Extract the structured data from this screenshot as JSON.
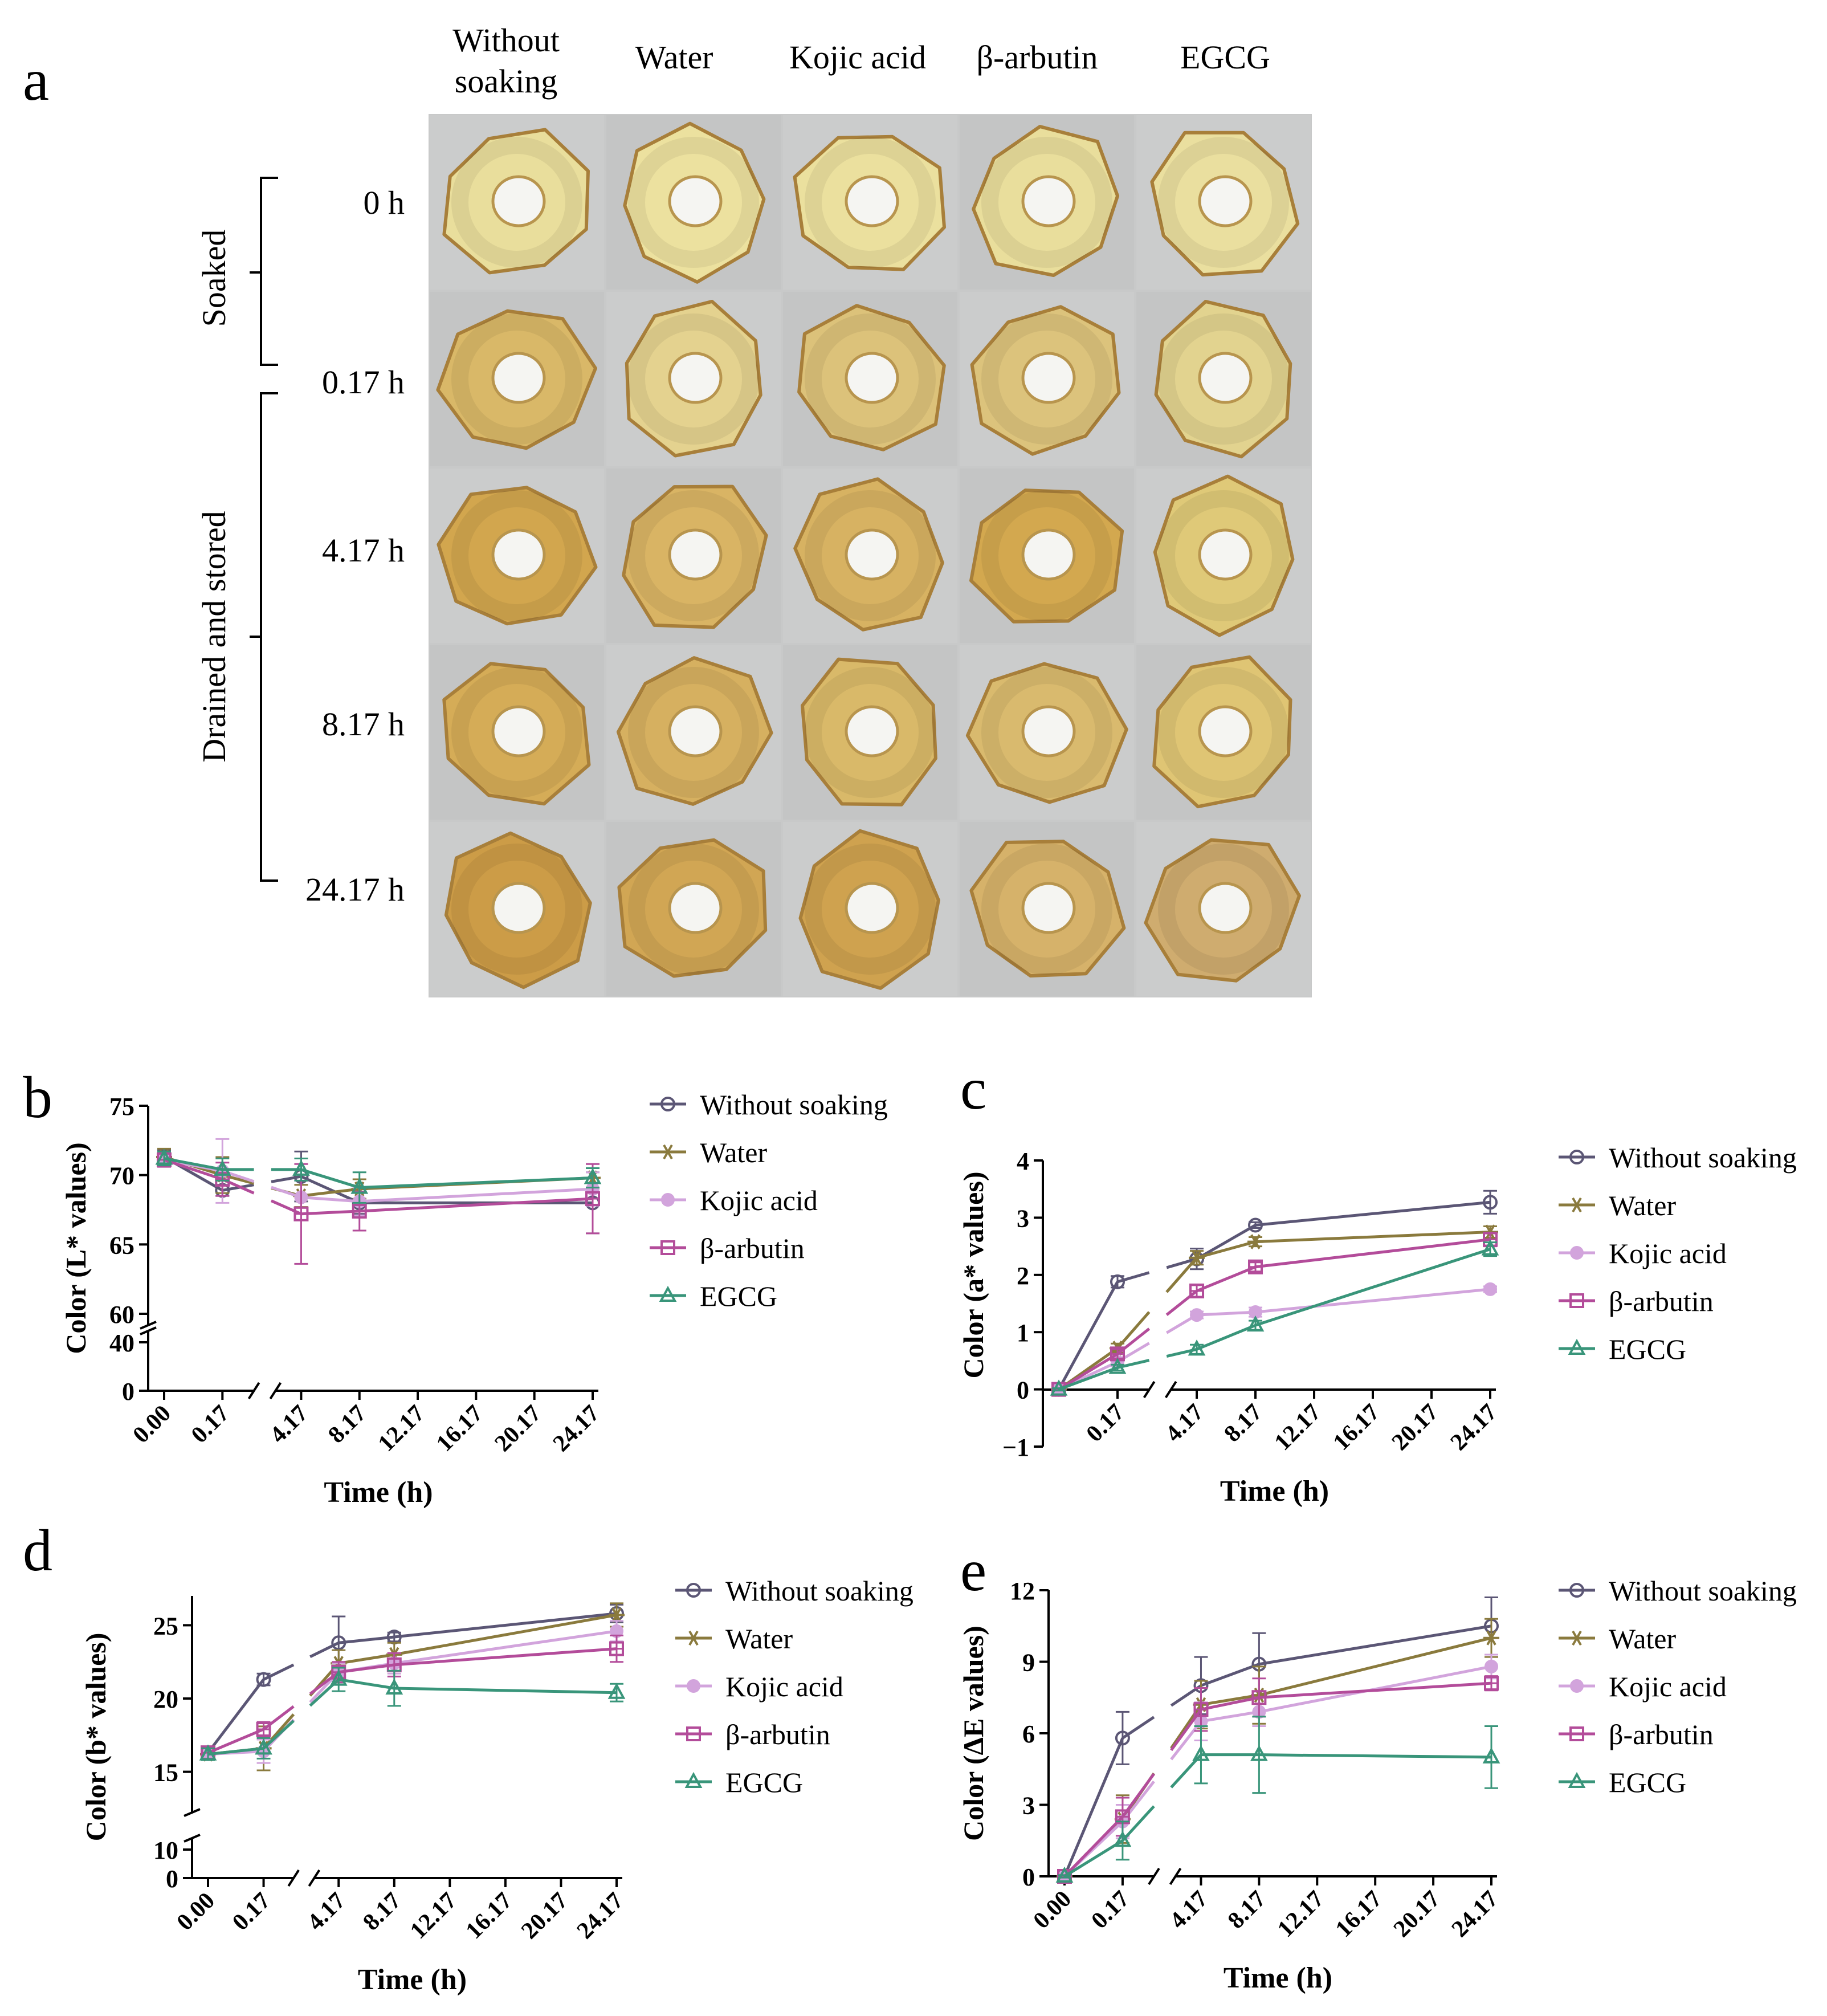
{
  "panel_a": {
    "letter": "a",
    "treatments": [
      "Without soaking",
      "Water",
      "Kojic acid",
      "β-arbutin",
      "EGCG"
    ],
    "treatment_header_lines": [
      [
        "Without",
        "soaking"
      ],
      [
        "Water"
      ],
      [
        "Kojic acid"
      ],
      [
        "β-arbutin"
      ],
      [
        "EGCG"
      ]
    ],
    "times": [
      "0 h",
      "0.17 h",
      "4.17 h",
      "8.17 h",
      "24.17 h"
    ],
    "group_soaked": "Soaked",
    "group_drained": "Drained and stored",
    "slice_colors": [
      [
        "#e9de9c",
        "#ece19f",
        "#ebe09e",
        "#e9de9c",
        "#eadf9f"
      ],
      [
        "#d9b868",
        "#e4d28f",
        "#dcc27a",
        "#dcc37c",
        "#e2d38f"
      ],
      [
        "#d2a64e",
        "#d9b464",
        "#d7b262",
        "#d3a84f",
        "#dfc978"
      ],
      [
        "#d5ac57",
        "#d6b060",
        "#d9b969",
        "#d9ba6e",
        "#dfc574"
      ],
      [
        "#cc9c47",
        "#d1a654",
        "#cfa24f",
        "#d6b26a",
        "#cfac6f"
      ]
    ],
    "background_color": "#c8c9c9"
  },
  "chart_data": [
    {
      "type": "line",
      "letter": "b",
      "ylabel": "Color (L* values)",
      "xlabel": "Time (h)",
      "x": [
        0.0,
        0.17,
        4.17,
        8.17,
        24.17
      ],
      "xticks": [
        "0.00",
        "0.17",
        "4.17",
        "8.17",
        "12.17",
        "16.17",
        "20.17",
        "24.17"
      ],
      "y_upper_range": [
        60,
        75
      ],
      "y_upper_ticks": [
        "60",
        "65",
        "70",
        "75"
      ],
      "y_lower_range": [
        0,
        40
      ],
      "y_lower_ticks": [
        "0",
        "40"
      ],
      "series": [
        {
          "name": "Without soaking",
          "values": [
            71.3,
            68.9,
            69.9,
            68.0,
            68.0
          ],
          "errors": [
            0.5,
            0.4,
            1.8,
            0.8,
            2.2
          ],
          "color": "#5b5675",
          "marker": "circle"
        },
        {
          "name": "Water",
          "values": [
            71.3,
            70.0,
            68.5,
            69.0,
            69.8
          ],
          "errors": [
            0.6,
            1.3,
            0.8,
            0.7,
            0.7
          ],
          "color": "#8a7a3d",
          "marker": "star"
        },
        {
          "name": "Kojic acid",
          "values": [
            71.1,
            70.3,
            68.4,
            68.1,
            69.0
          ],
          "errors": [
            0.4,
            2.3,
            1.2,
            1.0,
            1.2
          ],
          "color": "#d2a4dc",
          "marker": "dot"
        },
        {
          "name": "β-arbutin",
          "values": [
            71.1,
            69.7,
            67.2,
            67.4,
            68.3
          ],
          "errors": [
            0.5,
            1.2,
            3.6,
            1.4,
            2.5
          ],
          "color": "#b34c9a",
          "marker": "square"
        },
        {
          "name": "EGCG",
          "values": [
            71.2,
            70.4,
            70.4,
            69.1,
            69.8
          ],
          "errors": [
            0.5,
            0.8,
            0.8,
            1.1,
            0.7
          ],
          "color": "#39957a",
          "marker": "triangle"
        }
      ]
    },
    {
      "type": "line",
      "letter": "c",
      "ylabel": "Color (a* values)",
      "xlabel": "Time (h)",
      "x": [
        0.0,
        0.17,
        4.17,
        8.17,
        24.17
      ],
      "xticks": [
        "0.17",
        "4.17",
        "8.17",
        "12.17",
        "16.17",
        "20.17",
        "24.17"
      ],
      "y_range": [
        -1,
        4
      ],
      "y_ticks": [
        "−1",
        "0",
        "1",
        "2",
        "3",
        "4"
      ],
      "series": [
        {
          "name": "Without soaking",
          "values": [
            0.0,
            1.88,
            2.28,
            2.87,
            3.27
          ],
          "errors": [
            0.02,
            0.1,
            0.18,
            0.05,
            0.2
          ],
          "color": "#5b5675",
          "marker": "circle"
        },
        {
          "name": "Water",
          "values": [
            0.0,
            0.72,
            2.3,
            2.58,
            2.75
          ],
          "errors": [
            0.02,
            0.08,
            0.12,
            0.08,
            0.1
          ],
          "color": "#8a7a3d",
          "marker": "star"
        },
        {
          "name": "Kojic acid",
          "values": [
            0.0,
            0.48,
            1.3,
            1.35,
            1.75
          ],
          "errors": [
            0.02,
            0.08,
            0.06,
            0.08,
            0.05
          ],
          "color": "#d2a4dc",
          "marker": "dot"
        },
        {
          "name": "β-arbutin",
          "values": [
            0.0,
            0.62,
            1.72,
            2.14,
            2.62
          ],
          "errors": [
            0.02,
            0.08,
            0.1,
            0.08,
            0.12
          ],
          "color": "#b34c9a",
          "marker": "square"
        },
        {
          "name": "EGCG",
          "values": [
            0.0,
            0.38,
            0.7,
            1.12,
            2.45
          ],
          "errors": [
            0.02,
            0.05,
            0.08,
            0.08,
            0.12
          ],
          "color": "#39957a",
          "marker": "triangle"
        }
      ]
    },
    {
      "type": "line",
      "letter": "d",
      "ylabel": "Color (b* values)",
      "xlabel": "Time (h)",
      "x": [
        0.0,
        0.17,
        4.17,
        8.17,
        24.17
      ],
      "xticks": [
        "0.00",
        "0.17",
        "4.17",
        "8.17",
        "12.17",
        "16.17",
        "20.17",
        "24.17"
      ],
      "y_upper_range": [
        13,
        27
      ],
      "y_upper_ticks": [
        "15",
        "20",
        "25"
      ],
      "y_lower_range": [
        0,
        10
      ],
      "y_lower_ticks": [
        "0",
        "10"
      ],
      "series": [
        {
          "name": "Without soaking",
          "values": [
            16.3,
            21.3,
            23.8,
            24.2,
            25.8
          ],
          "errors": [
            0.4,
            0.4,
            1.8,
            0.3,
            0.6
          ],
          "color": "#5b5675",
          "marker": "circle"
        },
        {
          "name": "Water",
          "values": [
            16.2,
            16.6,
            22.4,
            23.0,
            25.7
          ],
          "errors": [
            0.4,
            1.5,
            0.9,
            0.8,
            0.8
          ],
          "color": "#8a7a3d",
          "marker": "star"
        },
        {
          "name": "Kojic acid",
          "values": [
            16.2,
            16.4,
            21.8,
            22.4,
            24.6
          ],
          "errors": [
            0.4,
            0.8,
            0.6,
            0.7,
            0.7
          ],
          "color": "#d2a4dc",
          "marker": "dot"
        },
        {
          "name": "β-arbutin",
          "values": [
            16.3,
            17.9,
            21.8,
            22.3,
            23.4
          ],
          "errors": [
            0.4,
            0.5,
            0.7,
            0.8,
            0.9
          ],
          "color": "#b34c9a",
          "marker": "square"
        },
        {
          "name": "EGCG",
          "values": [
            16.2,
            16.6,
            21.3,
            20.7,
            20.4
          ],
          "errors": [
            0.4,
            0.7,
            0.8,
            1.2,
            0.6
          ],
          "color": "#39957a",
          "marker": "triangle"
        }
      ]
    },
    {
      "type": "line",
      "letter": "e",
      "ylabel": "Color (ΔE values)",
      "xlabel": "Time (h)",
      "x": [
        0.0,
        0.17,
        4.17,
        8.17,
        24.17
      ],
      "xticks": [
        "0.00",
        "0.17",
        "4.17",
        "8.17",
        "12.17",
        "16.17",
        "20.17",
        "24.17"
      ],
      "y_range": [
        0,
        12
      ],
      "y_ticks": [
        "0",
        "3",
        "6",
        "9",
        "12"
      ],
      "series": [
        {
          "name": "Without soaking",
          "values": [
            0.0,
            5.8,
            8.0,
            8.9,
            10.5
          ],
          "errors": [
            0.05,
            1.1,
            1.2,
            1.3,
            1.2
          ],
          "color": "#5b5675",
          "marker": "circle"
        },
        {
          "name": "Water",
          "values": [
            0.0,
            2.4,
            7.2,
            7.6,
            10.0
          ],
          "errors": [
            0.05,
            1.0,
            1.0,
            1.2,
            0.8
          ],
          "color": "#8a7a3d",
          "marker": "star"
        },
        {
          "name": "Kojic acid",
          "values": [
            0.0,
            2.3,
            6.5,
            6.9,
            8.8
          ],
          "errors": [
            0.05,
            0.7,
            0.8,
            0.6,
            0.5
          ],
          "color": "#d2a4dc",
          "marker": "dot"
        },
        {
          "name": "β-arbutin",
          "values": [
            0.0,
            2.5,
            7.0,
            7.5,
            8.1
          ],
          "errors": [
            0.05,
            0.8,
            0.9,
            0.8,
            0.3
          ],
          "color": "#b34c9a",
          "marker": "square"
        },
        {
          "name": "EGCG",
          "values": [
            0.0,
            1.5,
            5.1,
            5.1,
            5.0
          ],
          "errors": [
            0.05,
            0.8,
            1.2,
            1.6,
            1.3
          ],
          "color": "#39957a",
          "marker": "triangle"
        }
      ]
    }
  ]
}
